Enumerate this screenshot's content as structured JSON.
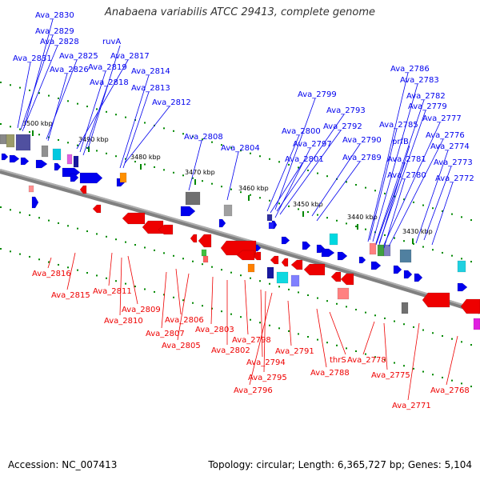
{
  "title": "Anabaena variabilis ATCC 29413, complete genome",
  "footer": {
    "accession": "Accession: NC_007413",
    "summary": "Topology: circular; Length: 6,365,727 bp; Genes: 5,104"
  },
  "colors": {
    "forward": "#0000ee",
    "reverse": "#ee0000",
    "backbone": "#808080",
    "ticks": "#008800"
  },
  "scale_labels": [
    "3500 kbp",
    "3490 kbp",
    "3480 kbp",
    "3470 kbp",
    "3460 kbp",
    "3450 kbp",
    "3440 kbp",
    "3430 kbp"
  ],
  "forward_labels": [
    "Ava_2830",
    "Ava_2829",
    "Ava_2828",
    "ruvA",
    "Ava_2831",
    "Ava_2825",
    "Ava_2817",
    "Ava_2826",
    "Ava_2819",
    "Ava_2814",
    "Ava_2818",
    "Ava_2813",
    "Ava_2812",
    "Ava_2799",
    "Ava_2793",
    "Ava_2792",
    "Ava_2800",
    "Ava_2797",
    "Ava_2790",
    "Ava_2808",
    "Ava_2804",
    "Ava_2801",
    "Ava_2789",
    "Ava_2786",
    "Ava_2783",
    "Ava_2782",
    "Ava_2779",
    "Ava_2785",
    "Ava_2777",
    "Ava_2776",
    "prfB",
    "Ava_2774",
    "Ava_2781",
    "Ava_2773",
    "Ava_2780",
    "Ava_2772"
  ],
  "reverse_labels": [
    "Ava_2816",
    "Ava_2815",
    "Ava_2811",
    "Ava_2809",
    "Ava_2810",
    "Ava_2807",
    "Ava_2806",
    "Ava_2805",
    "Ava_2803",
    "Ava_2802",
    "Ava_2798",
    "Ava_2794",
    "Ava_2795",
    "Ava_2796",
    "Ava_2791",
    "Ava_2788",
    "thrS",
    "Ava_2778",
    "Ava_2775",
    "Ava_2771",
    "Ava_2768"
  ]
}
